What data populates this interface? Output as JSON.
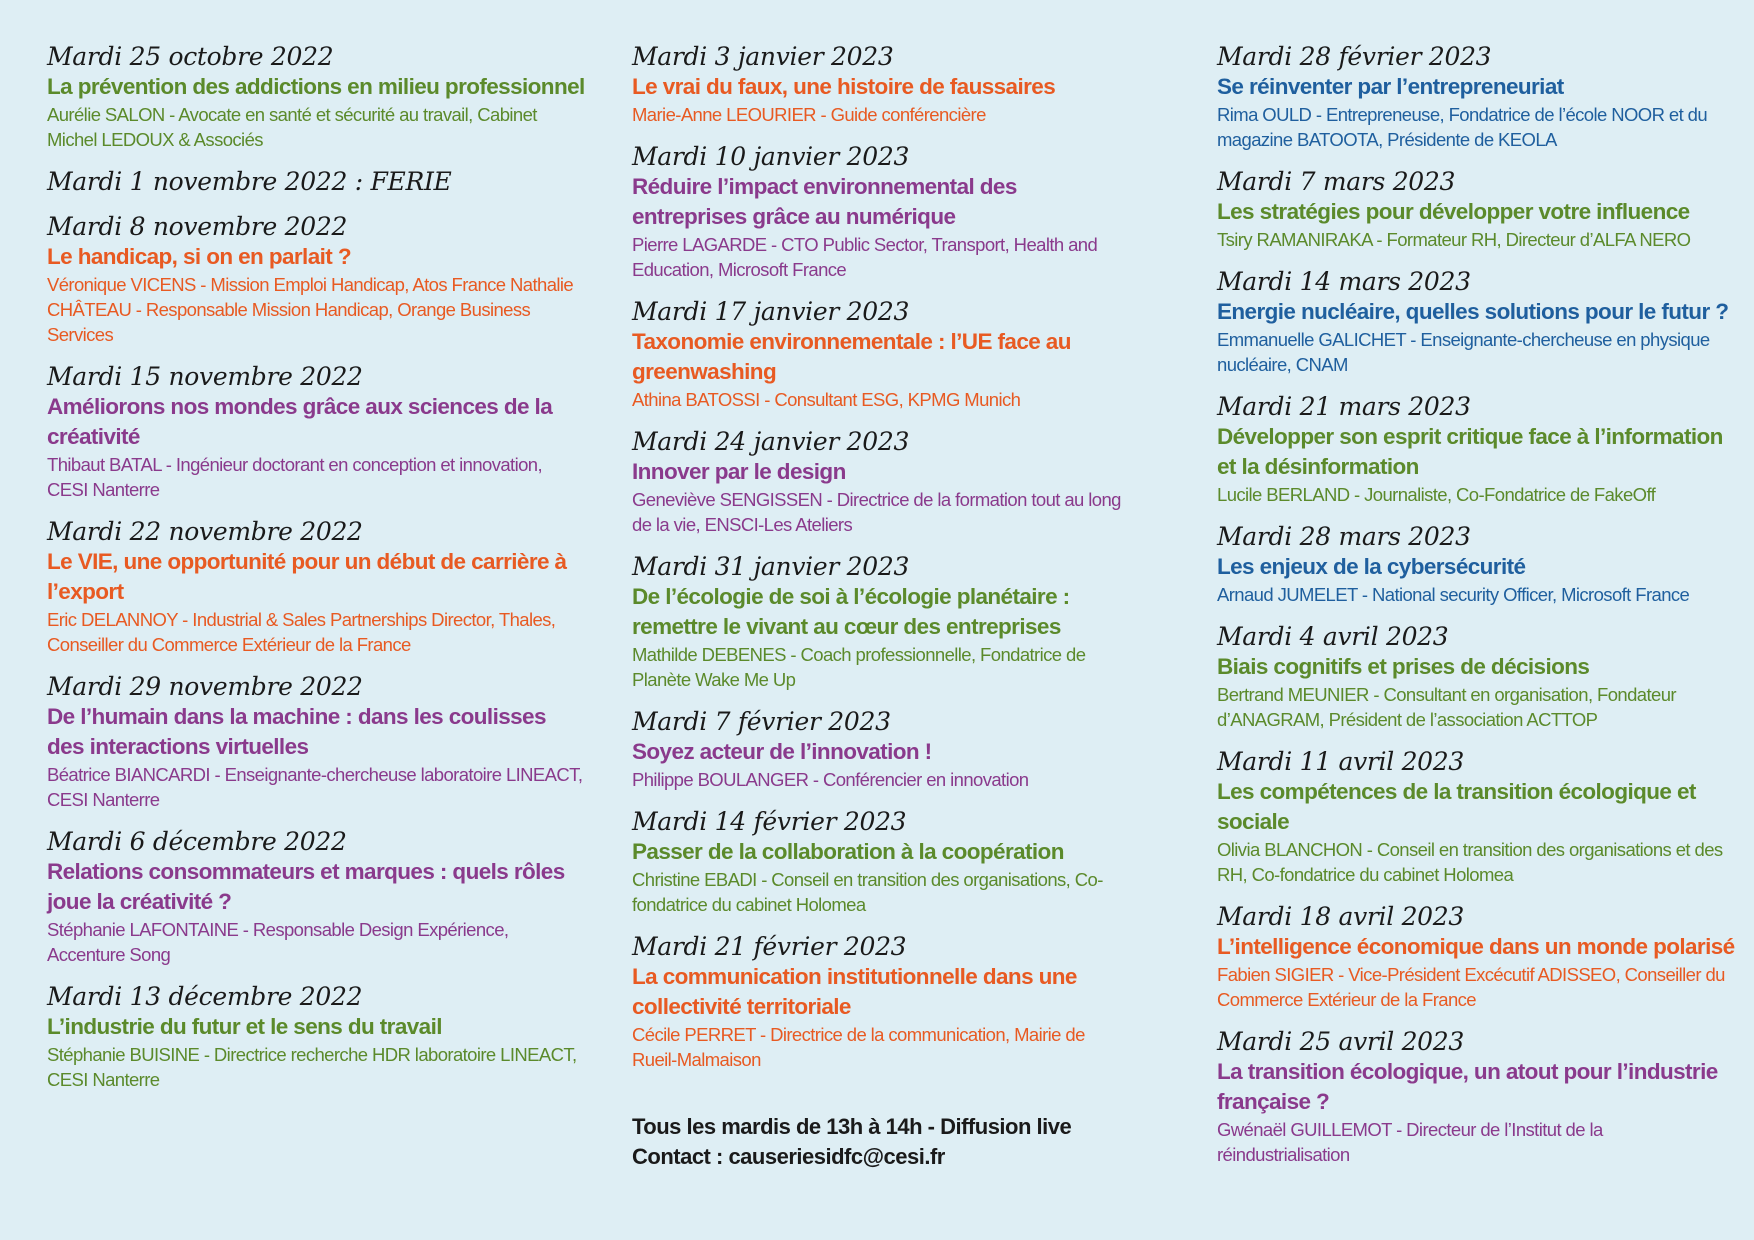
{
  "column1": [
    {
      "date": "Mardi 25 octobre 2022",
      "title": "La prévention des addictions en milieu professionnel",
      "speaker": "Aurélie SALON - Avocate en santé et sécurité au travail, Cabinet Michel LEDOUX & Associés",
      "color": "#5b8a2b"
    },
    {
      "date": "Mardi 1 novembre 2022 : FERIE",
      "title": "",
      "speaker": "",
      "color": "#1a1a1a"
    },
    {
      "date": "Mardi 8 novembre 2022",
      "title": "Le handicap, si on en parlait ?",
      "speaker": "Véronique VICENS - Mission Emploi Handicap, Atos France Nathalie CHÂTEAU - Responsable Mission Handicap, Orange Business Services",
      "color": "#e85a22"
    },
    {
      "date": "Mardi 15 novembre 2022",
      "title": "Améliorons nos mondes grâce aux sciences de la créativité",
      "speaker": "Thibaut BATAL - Ingénieur doctorant en conception et innovation, CESI Nanterre",
      "color": "#8a3a8c"
    },
    {
      "date": "Mardi 22 novembre 2022",
      "title": "Le VIE, une opportunité pour un début de carrière à l’export",
      "speaker": "Eric DELANNOY - Industrial & Sales Partnerships Director, Thales, Conseiller du Commerce Extérieur de la France",
      "color": "#e85a22"
    },
    {
      "date": "Mardi 29 novembre 2022",
      "title": "De l’humain dans la machine : dans les coulisses des interactions virtuelles",
      "speaker": "Béatrice BIANCARDI - Enseignante-chercheuse laboratoire LINEACT, CESI Nanterre",
      "color": "#8a3a8c"
    },
    {
      "date": "Mardi 6 décembre 2022",
      "title": "Relations consommateurs et marques : quels rôles joue la créativité ?",
      "speaker": "Stéphanie LAFONTAINE - Responsable Design Expérience, Accenture Song",
      "color": "#8a3a8c"
    },
    {
      "date": "Mardi 13 décembre 2022",
      "title": "L’industrie du futur et le sens du travail",
      "speaker": "Stéphanie BUISINE - Directrice recherche HDR laboratoire LINEACT, CESI Nanterre",
      "color": "#5b8a2b"
    }
  ],
  "column2": [
    {
      "date": "Mardi 3 janvier 2023",
      "title": "Le vrai du faux, une histoire de faussaires",
      "speaker": "Marie-Anne LEOURIER - Guide conférencière",
      "color": "#e85a22"
    },
    {
      "date": "Mardi 10 janvier 2023",
      "title": "Réduire l’impact environnemental des entreprises grâce au numérique",
      "speaker": "Pierre LAGARDE - CTO Public Sector, Transport, Health and Education, Microsoft France",
      "color": "#8a3a8c"
    },
    {
      "date": "Mardi 17 janvier 2023",
      "title": "Taxonomie environnementale : l’UE face au greenwashing",
      "speaker": "Athina BATOSSI - Consultant ESG, KPMG Munich",
      "color": "#e85a22"
    },
    {
      "date": "Mardi 24 janvier 2023",
      "title": "Innover par le design",
      "speaker": "Geneviève SENGISSEN - Directrice de la formation tout au long de la vie, ENSCI-Les Ateliers",
      "color": "#8a3a8c"
    },
    {
      "date": "Mardi 31 janvier 2023",
      "title": "De l’écologie de soi à l’écologie planétaire : remettre le vivant au cœur des entreprises",
      "speaker": "Mathilde DEBENES - Coach professionnelle, Fondatrice de Planète Wake Me Up",
      "color": "#5b8a2b"
    },
    {
      "date": "Mardi 7 février 2023",
      "title": "Soyez acteur de l’innovation !",
      "speaker": "Philippe BOULANGER - Conférencier en innovation",
      "color": "#8a3a8c"
    },
    {
      "date": "Mardi 14 février 2023",
      "title": "Passer de la collaboration à la coopération",
      "speaker": "Christine EBADI - Conseil en transition des organisations, Co-fondatrice du cabinet Holomea",
      "color": "#5b8a2b"
    },
    {
      "date": "Mardi 21 février 2023",
      "title": "La communication institutionnelle dans une collectivité territoriale",
      "speaker": "Cécile PERRET - Directrice de la communication, Mairie de Rueil-Malmaison",
      "color": "#e85a22"
    }
  ],
  "info": {
    "schedule": "Tous les mardis de 13h à 14h - Diffusion live",
    "contact": "Contact : causeriesidfc@cesi.fr"
  },
  "column3": [
    {
      "date": "Mardi 28 février 2023",
      "title": "Se réinventer par l’entrepreneuriat",
      "speaker": "Rima OULD - Entrepreneuse, Fondatrice de l’école NOOR et du magazine BATOOTA, Présidente de KEOLA",
      "color": "#1f5f9e"
    },
    {
      "date": "Mardi 7 mars 2023",
      "title": "Les stratégies pour développer votre influence",
      "speaker": "Tsiry RAMANIRAKA - Formateur RH, Directeur d’ALFA NERO",
      "color": "#5b8a2b"
    },
    {
      "date": "Mardi 14 mars 2023",
      "title": "Energie nucléaire, quelles solutions pour le futur ?",
      "speaker": "Emmanuelle GALICHET - Enseignante-chercheuse en physique nucléaire, CNAM",
      "color": "#1f5f9e"
    },
    {
      "date": "Mardi 21 mars 2023",
      "title": "Développer son esprit critique face à l’information et la désinformation",
      "speaker": "Lucile BERLAND - Journaliste, Co-Fondatrice de FakeOff",
      "color": "#5b8a2b"
    },
    {
      "date": "Mardi 28 mars 2023",
      "title": "Les enjeux de la cybersécurité",
      "speaker": "Arnaud JUMELET - National security Officer, Microsoft France",
      "color": "#1f5f9e"
    },
    {
      "date": "Mardi 4 avril 2023",
      "title": "Biais cognitifs et prises de décisions",
      "speaker": "Bertrand MEUNIER - Consultant en organisation, Fondateur d’ANAGRAM, Président de l’association ACTTOP",
      "color": "#5b8a2b"
    },
    {
      "date": "Mardi 11 avril 2023",
      "title": "Les compétences de la transition écologique et sociale",
      "speaker": "Olivia BLANCHON - Conseil en transition des organisations et des RH, Co-fondatrice du cabinet Holomea",
      "color": "#5b8a2b"
    },
    {
      "date": "Mardi 18 avril 2023",
      "title": "L’intelligence économique dans un monde polarisé",
      "speaker": "Fabien SIGIER - Vice-Président Excécutif ADISSEO, Conseiller du Commerce Extérieur de la France",
      "color": "#e85a22"
    },
    {
      "date": "Mardi 25 avril 2023",
      "title": "La transition écologique, un atout pour l’industrie française ?",
      "speaker": "Gwénaël GUILLEMOT - Directeur de l’Institut de la réindustrialisation",
      "color": "#8a3a8c"
    }
  ]
}
